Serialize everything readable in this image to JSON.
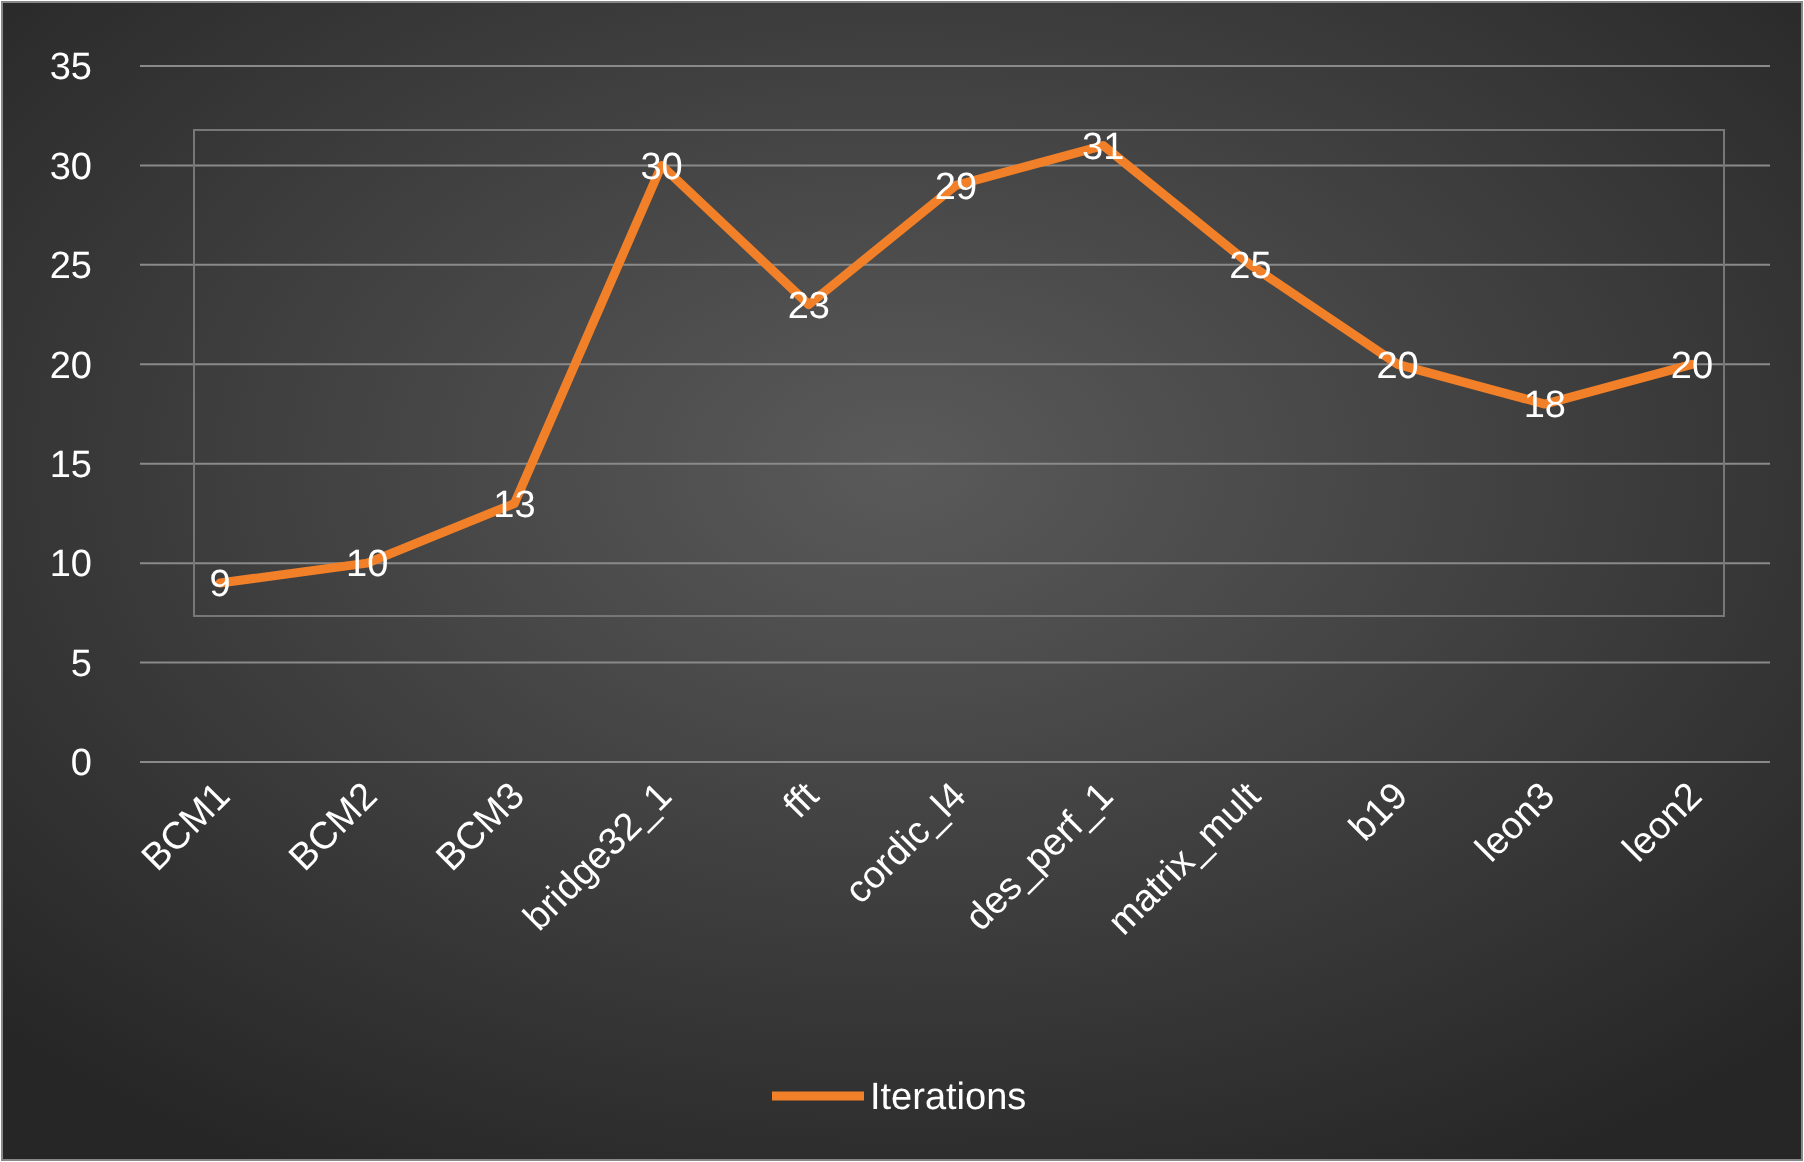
{
  "chart_data": {
    "type": "line",
    "categories": [
      "BCM1",
      "BCM2",
      "BCM3",
      "bridge32_1",
      "fft",
      "cordic_l4",
      "des_perf_1",
      "matrix_mult",
      "b19",
      "leon3",
      "leon2"
    ],
    "series": [
      {
        "name": "Iterations",
        "color": "#f28028",
        "values": [
          9,
          10,
          13,
          30,
          23,
          29,
          31,
          25,
          20,
          18,
          20
        ]
      }
    ],
    "ylim": [
      0,
      35
    ],
    "yticks": [
      0,
      5,
      10,
      15,
      20,
      25,
      30,
      35
    ],
    "grid": "y",
    "legend": "bottom",
    "data_labels": true,
    "marker": "none",
    "line_style": "solid"
  }
}
